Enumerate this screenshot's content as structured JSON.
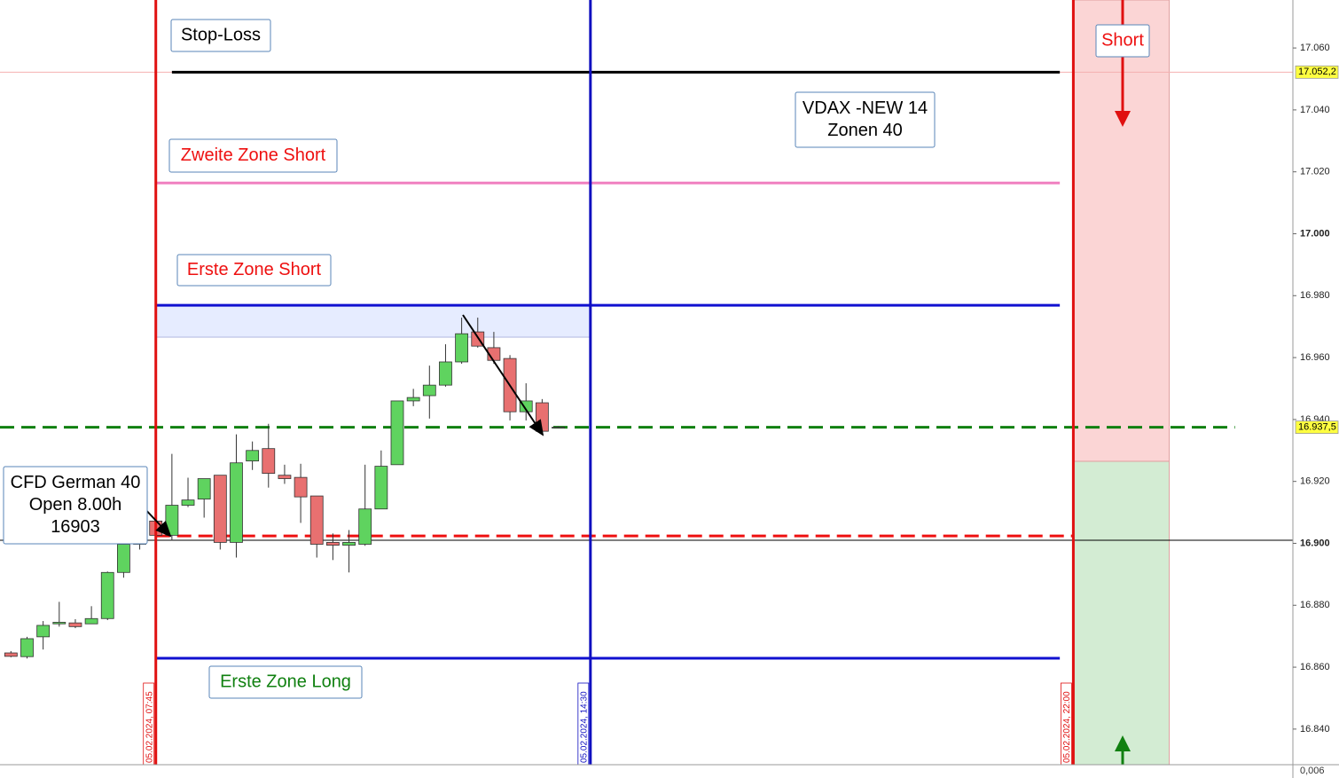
{
  "chart_data": {
    "type": "candlestick",
    "x": [
      5.5,
      5.75,
      6.0,
      6.25,
      6.5,
      6.75,
      7.0,
      7.25,
      7.5,
      7.75,
      8.0,
      8.25,
      8.5,
      8.75,
      9.0,
      9.25,
      9.5,
      9.75,
      10.0,
      10.25,
      10.5,
      10.75,
      11.0,
      11.25,
      11.5,
      11.75,
      12.0,
      12.25,
      12.5,
      12.75,
      13.0,
      13.25,
      13.5,
      13.75,
      14.0
    ],
    "open": [
      16864.6,
      16863.4,
      16869.8,
      16874.0,
      16874.3,
      16874.0,
      16875.7,
      16890.6,
      16899.7,
      16907.2,
      16902.6,
      16912.3,
      16914.3,
      16922.0,
      16900.3,
      16926.6,
      16930.6,
      16922.0,
      16921.3,
      16915.3,
      16900.3,
      16899.4,
      16899.7,
      16911.1,
      16925.4,
      16946.0,
      16947.7,
      16951.1,
      16958.6,
      16968.3,
      16963.2,
      16959.7,
      16942.5,
      16945.4,
      16937.5
    ],
    "high": [
      16865.2,
      16869.8,
      16874.9,
      16881.1,
      16875.5,
      16879.7,
      16890.9,
      16900.3,
      16909.5,
      16907.2,
      16928.9,
      16921.2,
      16920.9,
      16922.0,
      16935.2,
      16932.9,
      16938.6,
      16925.4,
      16925.7,
      16915.3,
      16903.2,
      16904.3,
      16925.4,
      16930.0,
      16946.0,
      16949.9,
      16957.4,
      16964.3,
      16972.9,
      16972.9,
      16968.3,
      16960.8,
      16951.7,
      16946.6,
      16937.8
    ],
    "low": [
      16863.2,
      16862.8,
      16865.7,
      16873.1,
      16872.6,
      16874.0,
      16875.2,
      16888.9,
      16898.0,
      16900.9,
      16900.9,
      16911.7,
      16908.3,
      16898.0,
      16895.4,
      16923.7,
      16918.0,
      16919.2,
      16906.6,
      16895.4,
      16894.6,
      16890.6,
      16899.2,
      16911.1,
      16925.4,
      16944.3,
      16940.3,
      16950.6,
      16958.0,
      16963.2,
      16958.0,
      16939.7,
      16939.7,
      16935.7,
      16937.2
    ],
    "close": [
      16863.5,
      16869.2,
      16873.5,
      16874.5,
      16873.1,
      16875.7,
      16890.6,
      16899.7,
      16907.8,
      16902.6,
      16912.3,
      16914.0,
      16920.9,
      16900.3,
      16926.0,
      16930.0,
      16922.6,
      16920.9,
      16915.0,
      16899.7,
      16899.4,
      16900.3,
      16911.1,
      16924.9,
      16946.0,
      16947.1,
      16951.1,
      16958.6,
      16967.7,
      16963.7,
      16959.1,
      16942.5,
      16946.0,
      16936.2,
      16937.5
    ],
    "up_color": "#5fd35f",
    "down_color": "#e87070",
    "xlim": [
      5.33,
      25.41
    ],
    "ylim": [
      16828.5,
      17075.5
    ],
    "yticks": [
      {
        "value": 17060,
        "label": "17.060"
      },
      {
        "value": 17040,
        "label": "17.040"
      },
      {
        "value": 17020,
        "label": "17.020"
      },
      {
        "value": 17000,
        "label": "17.000"
      },
      {
        "value": 16980,
        "label": "16.980"
      },
      {
        "value": 16960,
        "label": "16.960"
      },
      {
        "value": 16940,
        "label": "16.940"
      },
      {
        "value": 16920,
        "label": "16.920"
      },
      {
        "value": 16900,
        "label": "16.900"
      },
      {
        "value": 16880,
        "label": "16.880"
      },
      {
        "value": 16860,
        "label": "16.860"
      },
      {
        "value": 16840,
        "label": "16.840"
      }
    ],
    "sub_axis_label": "0,006",
    "price_tags": [
      {
        "value": 17052.2,
        "label": "17.052,2"
      },
      {
        "value": 16937.5,
        "label": "16.937,5"
      }
    ],
    "vlines": [
      {
        "x": 7.75,
        "label": "05.02.2024, 07:45",
        "color": "#e01010"
      },
      {
        "x": 14.5,
        "label": "05.02.2024, 14:30",
        "color": "#1010c0"
      },
      {
        "x": 22.0,
        "label": "05.02.2024, 22:00",
        "color": "#e01010"
      }
    ],
    "levels": [
      {
        "value": 17052.2,
        "from": 5.33,
        "to": 25.41,
        "color": "#f4b0b0",
        "width": 1,
        "dash": false
      },
      {
        "value": 17052.2,
        "from": 8.0,
        "to": 21.79,
        "color": "#000000",
        "width": 3,
        "dash": false
      },
      {
        "value": 17016.4,
        "from": 7.75,
        "to": 21.79,
        "color": "#f080c0",
        "width": 3,
        "dash": false
      },
      {
        "value": 16976.9,
        "from": 7.75,
        "to": 21.79,
        "color": "#1010d0",
        "width": 3,
        "dash": false
      },
      {
        "value": 16862.9,
        "from": 7.75,
        "to": 21.79,
        "color": "#1010d0",
        "width": 3,
        "dash": false
      },
      {
        "value": 16902.4,
        "from": 7.75,
        "to": 22.0,
        "color": "#ee1010",
        "width": 3,
        "dash": true
      },
      {
        "value": 16937.5,
        "from": 5.33,
        "to": 24.51,
        "color": "#108010",
        "width": 3,
        "dash": true
      },
      {
        "value": 16901.0,
        "from": 5.33,
        "to": 25.41,
        "color": "#000000",
        "width": 1,
        "dash": false
      }
    ],
    "zones": [
      {
        "from_x": 7.75,
        "to_x": 14.5,
        "low": 16966.6,
        "high": 16977.0,
        "color": "#e6ecff"
      },
      {
        "from_x": 22.0,
        "to_x": 23.49,
        "low": 16926.5,
        "high": 17075.5,
        "color": "#fbd5d5"
      },
      {
        "from_x": 22.0,
        "to_x": 23.49,
        "low": 16828.5,
        "high": 16926.5,
        "color": "#d3ecd3"
      }
    ],
    "annotations": [
      {
        "lines": [
          "Stop-Loss"
        ],
        "color": "#000000"
      },
      {
        "lines": [
          "Zweite Zone Short"
        ],
        "color": "#ee1010"
      },
      {
        "lines": [
          "Erste Zone Short"
        ],
        "color": "#ee1010"
      },
      {
        "lines": [
          "Erste Zone Long"
        ],
        "color": "#108010"
      },
      {
        "lines": [
          "VDAX -NEW 14",
          "Zonen 40"
        ],
        "color": "#000000"
      },
      {
        "lines": [
          "CFD German 40",
          "Open 8.00h",
          "16903"
        ],
        "color": "#000000"
      },
      {
        "lines": [
          "Short"
        ],
        "color": "#ee1010"
      }
    ]
  }
}
